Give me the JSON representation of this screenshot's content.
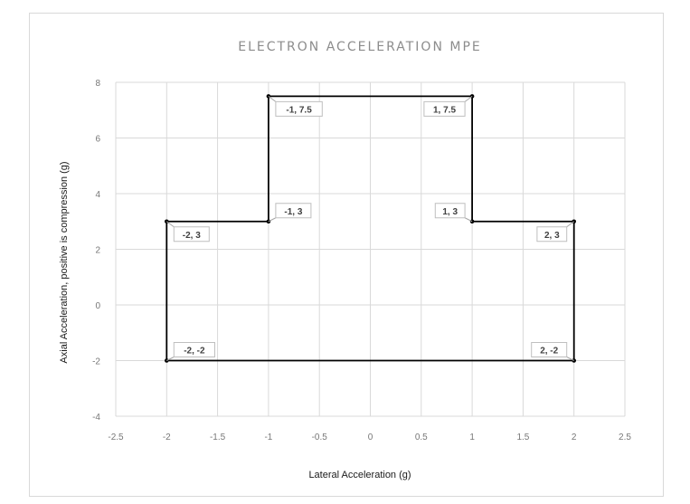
{
  "chart_data": {
    "type": "scatter",
    "title": "ELECTRON ACCELERATION MPE",
    "xlabel": "Lateral Acceleration (g)",
    "ylabel": "Axial Acceleration, positive is compression (g)",
    "xlim": [
      -2.5,
      2.5
    ],
    "ylim": [
      -4,
      8
    ],
    "x_ticks": [
      -2.5,
      -2,
      -1.5,
      -1,
      -0.5,
      0,
      0.5,
      1,
      1.5,
      2,
      2.5
    ],
    "x_tick_labels": [
      "-2.5",
      "-2",
      "-1.5",
      "-1",
      "-0.5",
      "0",
      "0.5",
      "1",
      "1.5",
      "2",
      "2.5"
    ],
    "y_ticks": [
      -4,
      -2,
      0,
      2,
      4,
      6,
      8
    ],
    "y_tick_labels": [
      "-4",
      "-2",
      "0",
      "2",
      "4",
      "6",
      "8"
    ],
    "grid": true,
    "legend": "none",
    "line_color": "#000000",
    "series": [
      {
        "points": [
          {
            "x": -2,
            "y": -2,
            "label": "-2, -2",
            "label_side": "upper-right"
          },
          {
            "x": -2,
            "y": 3,
            "label": "-2, 3",
            "label_side": "lower-right"
          },
          {
            "x": -1,
            "y": 3,
            "label": "-1, 3",
            "label_side": "upper-right"
          },
          {
            "x": -1,
            "y": 7.5,
            "label": "-1, 7.5",
            "label_side": "lower-right"
          },
          {
            "x": 1,
            "y": 7.5,
            "label": "1, 7.5",
            "label_side": "lower-left"
          },
          {
            "x": 1,
            "y": 3,
            "label": "1, 3",
            "label_side": "upper-left"
          },
          {
            "x": 2,
            "y": 3,
            "label": "2, 3",
            "label_side": "lower-left"
          },
          {
            "x": 2,
            "y": -2,
            "label": "2, -2",
            "label_side": "upper-left"
          }
        ],
        "closed": true
      }
    ]
  }
}
